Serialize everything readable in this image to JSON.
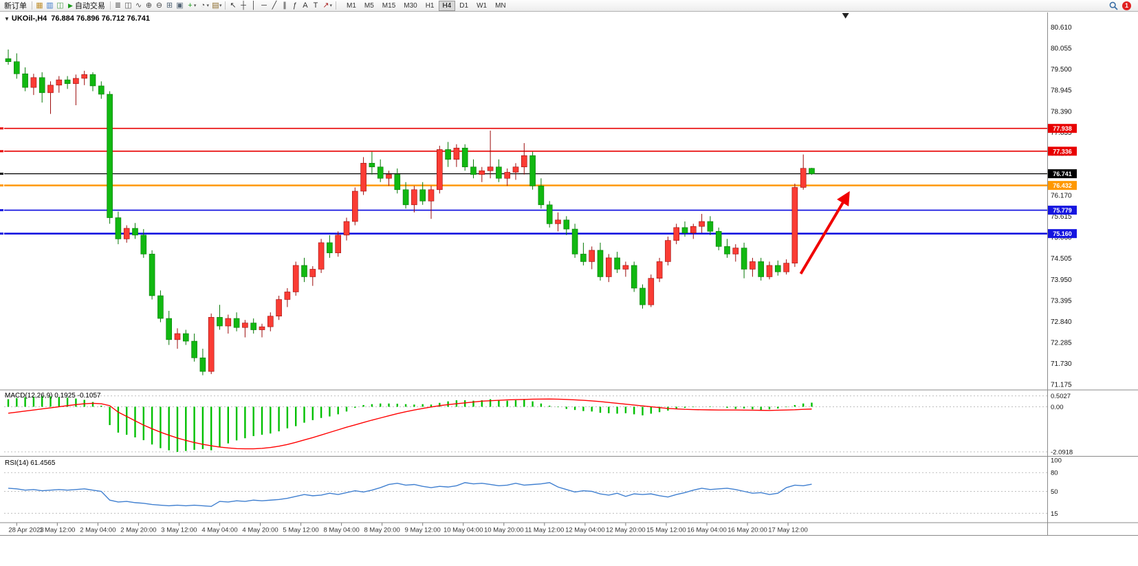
{
  "app": {
    "notification_count": "1"
  },
  "toolbar": {
    "new_order": "新订单",
    "auto_trading": "自动交易",
    "window_icons": [
      {
        "name": "market-watch-icon",
        "glyph": "▦",
        "color": "#c09030"
      },
      {
        "name": "data-window-icon",
        "glyph": "▥",
        "color": "#3c78c8"
      },
      {
        "name": "navigator-icon",
        "glyph": "◫",
        "color": "#4f9f4f"
      }
    ],
    "chart_type_icons": [
      {
        "name": "bar-chart-icon",
        "glyph": "≣",
        "color": "#555555"
      },
      {
        "name": "candlestick-chart-icon",
        "glyph": "◫",
        "color": "#555555"
      },
      {
        "name": "line-chart-icon",
        "glyph": "∿",
        "color": "#555555"
      }
    ],
    "zoom_icons": [
      {
        "name": "zoom-in-icon",
        "glyph": "⊕",
        "color": "#444444"
      },
      {
        "name": "zoom-out-icon",
        "glyph": "⊖",
        "color": "#444444"
      }
    ],
    "window_arrange_icons": [
      {
        "name": "tile-windows-icon",
        "glyph": "⊞",
        "color": "#556677"
      },
      {
        "name": "cascade-windows-icon",
        "glyph": "▣",
        "color": "#556677"
      }
    ],
    "insert_icons": [
      {
        "name": "indicators-icon",
        "glyph": "+",
        "color": "#1a9a1a",
        "dropdown": true
      },
      {
        "name": "periods-icon",
        "glyph": "◔",
        "color": "#555555",
        "dropdown": true
      },
      {
        "name": "templates-icon",
        "glyph": "▤",
        "color": "#8a6a2a",
        "dropdown": true
      }
    ],
    "draw_icons": [
      {
        "name": "cursor-icon",
        "glyph": "↖",
        "color": "#333333"
      },
      {
        "name": "crosshair-icon",
        "glyph": "┼",
        "color": "#333333"
      },
      {
        "name": "vertical-line-icon",
        "glyph": "│",
        "color": "#333333"
      },
      {
        "name": "horizontal-line-icon",
        "glyph": "─",
        "color": "#333333"
      },
      {
        "name": "trendline-icon",
        "glyph": "╱",
        "color": "#333333"
      },
      {
        "name": "channel-icon",
        "glyph": "∥",
        "color": "#333333"
      },
      {
        "name": "fibonacci-icon",
        "glyph": "ƒ",
        "color": "#333333"
      },
      {
        "name": "text-icon",
        "glyph": "A",
        "color": "#333333"
      },
      {
        "name": "label-icon",
        "glyph": "T",
        "color": "#333333"
      },
      {
        "name": "arrows-icon",
        "glyph": "↗",
        "color": "#aa2222",
        "dropdown": true
      }
    ],
    "timeframes": [
      "M1",
      "M5",
      "M15",
      "M30",
      "H1",
      "H4",
      "D1",
      "W1",
      "MN"
    ],
    "active_timeframe": "H4"
  },
  "chart": {
    "title": "UKOil-,H4",
    "ohlc": "76.884 76.896 76.712 76.741",
    "macd_label": "MACD(12,26,9) 0.1925 -0.1057",
    "rsi_label": "RSI(14) 61.4565"
  },
  "chart_data": {
    "type": "candlestick",
    "symbol": "UKOil-",
    "period": "H4",
    "current": {
      "open": 76.884,
      "high": 76.896,
      "low": 76.712,
      "close": 76.741
    },
    "colors": {
      "bull": "#fa3c34",
      "bull_border": "#9c0b0b",
      "bear": "#11b811",
      "bear_border": "#067806"
    },
    "price_axis": {
      "min": 71.05,
      "max": 80.82,
      "labels": [
        "80.610",
        "80.055",
        "79.500",
        "78.945",
        "78.390",
        "77.835",
        "77.280",
        "76.725",
        "76.170",
        "75.615",
        "75.060",
        "74.505",
        "73.950",
        "73.395",
        "72.840",
        "72.285",
        "71.730",
        "71.175"
      ]
    },
    "time_labels": [
      "28 Apr 2023",
      "1 May 12:00",
      "2 May 04:00",
      "2 May 20:00",
      "3 May 12:00",
      "4 May 04:00",
      "4 May 20:00",
      "5 May 12:00",
      "8 May 04:00",
      "8 May 20:00",
      "9 May 12:00",
      "10 May 04:00",
      "10 May 20:00",
      "11 May 12:00",
      "12 May 04:00",
      "12 May 20:00",
      "15 May 12:00",
      "16 May 04:00",
      "16 May 20:00",
      "17 May 12:00"
    ],
    "candles": [
      [
        79.78,
        80.02,
        79.62,
        79.7
      ],
      [
        79.7,
        79.92,
        79.25,
        79.38
      ],
      [
        79.38,
        79.55,
        78.92,
        79.02
      ],
      [
        79.02,
        79.38,
        78.82,
        79.28
      ],
      [
        79.28,
        79.42,
        78.62,
        78.88
      ],
      [
        78.88,
        79.18,
        78.32,
        79.08
      ],
      [
        79.08,
        79.32,
        78.88,
        79.22
      ],
      [
        79.22,
        79.32,
        78.98,
        79.12
      ],
      [
        79.12,
        79.36,
        78.55,
        79.26
      ],
      [
        79.26,
        79.46,
        79.08,
        79.36
      ],
      [
        79.36,
        79.42,
        78.92,
        79.06
      ],
      [
        79.06,
        79.18,
        78.72,
        78.84
      ],
      [
        78.84,
        78.92,
        75.42,
        75.58
      ],
      [
        75.58,
        75.74,
        74.88,
        75.02
      ],
      [
        75.02,
        75.38,
        74.92,
        75.3
      ],
      [
        75.3,
        75.44,
        75.02,
        75.12
      ],
      [
        75.12,
        75.28,
        74.52,
        74.62
      ],
      [
        74.62,
        74.72,
        73.42,
        73.52
      ],
      [
        73.52,
        73.66,
        72.82,
        72.92
      ],
      [
        72.92,
        73.12,
        72.22,
        72.36
      ],
      [
        72.36,
        72.66,
        72.12,
        72.52
      ],
      [
        72.52,
        72.62,
        72.22,
        72.32
      ],
      [
        72.32,
        72.52,
        71.78,
        71.88
      ],
      [
        71.88,
        72.12,
        71.42,
        71.52
      ],
      [
        71.52,
        73.05,
        71.45,
        72.95
      ],
      [
        72.95,
        73.28,
        72.62,
        72.72
      ],
      [
        72.72,
        73.02,
        72.52,
        72.92
      ],
      [
        72.92,
        73.08,
        72.58,
        72.68
      ],
      [
        72.68,
        72.88,
        72.42,
        72.8
      ],
      [
        72.8,
        72.92,
        72.52,
        72.62
      ],
      [
        72.62,
        72.78,
        72.42,
        72.7
      ],
      [
        72.7,
        73.08,
        72.58,
        72.98
      ],
      [
        72.98,
        73.52,
        72.88,
        73.42
      ],
      [
        73.42,
        73.72,
        73.22,
        73.62
      ],
      [
        73.62,
        74.42,
        73.52,
        74.32
      ],
      [
        74.32,
        74.52,
        73.88,
        74.02
      ],
      [
        74.02,
        74.3,
        73.78,
        74.22
      ],
      [
        74.22,
        75.02,
        74.12,
        74.92
      ],
      [
        74.92,
        75.12,
        74.52,
        74.65
      ],
      [
        74.65,
        75.22,
        74.55,
        75.12
      ],
      [
        75.12,
        75.58,
        74.98,
        75.48
      ],
      [
        75.48,
        76.38,
        75.38,
        76.28
      ],
      [
        76.28,
        77.18,
        76.18,
        77.02
      ],
      [
        77.02,
        77.32,
        76.72,
        76.92
      ],
      [
        76.92,
        77.12,
        76.52,
        76.62
      ],
      [
        76.62,
        76.82,
        76.42,
        76.72
      ],
      [
        76.72,
        76.88,
        76.22,
        76.32
      ],
      [
        76.32,
        76.52,
        75.82,
        75.92
      ],
      [
        75.92,
        76.42,
        75.72,
        76.32
      ],
      [
        76.32,
        76.52,
        75.92,
        76.02
      ],
      [
        76.02,
        76.42,
        75.55,
        76.32
      ],
      [
        76.32,
        77.48,
        76.22,
        77.38
      ],
      [
        77.38,
        77.58,
        76.92,
        77.12
      ],
      [
        77.12,
        77.52,
        76.92,
        77.42
      ],
      [
        77.42,
        77.52,
        76.82,
        76.92
      ],
      [
        76.92,
        77.12,
        76.62,
        76.72
      ],
      [
        76.72,
        76.92,
        76.52,
        76.82
      ],
      [
        76.82,
        77.88,
        76.62,
        76.92
      ],
      [
        76.92,
        77.12,
        76.52,
        76.62
      ],
      [
        76.62,
        76.88,
        76.42,
        76.78
      ],
      [
        76.78,
        77.02,
        76.58,
        76.92
      ],
      [
        76.92,
        77.55,
        76.72,
        77.22
      ],
      [
        77.22,
        77.32,
        76.32,
        76.42
      ],
      [
        76.42,
        76.62,
        75.82,
        75.92
      ],
      [
        75.92,
        76.02,
        75.32,
        75.42
      ],
      [
        75.42,
        75.72,
        75.22,
        75.52
      ],
      [
        75.52,
        75.62,
        75.12,
        75.28
      ],
      [
        75.28,
        75.42,
        74.52,
        74.62
      ],
      [
        74.62,
        74.92,
        74.32,
        74.42
      ],
      [
        74.42,
        74.82,
        74.22,
        74.72
      ],
      [
        74.72,
        74.92,
        73.92,
        74.02
      ],
      [
        74.02,
        74.62,
        73.88,
        74.52
      ],
      [
        74.52,
        74.68,
        74.12,
        74.22
      ],
      [
        74.22,
        74.42,
        74.02,
        74.32
      ],
      [
        74.32,
        74.42,
        73.62,
        73.72
      ],
      [
        73.72,
        73.82,
        73.18,
        73.28
      ],
      [
        73.28,
        74.08,
        73.22,
        73.98
      ],
      [
        73.98,
        74.52,
        73.88,
        74.42
      ],
      [
        74.42,
        75.08,
        74.32,
        74.98
      ],
      [
        74.98,
        75.42,
        74.88,
        75.32
      ],
      [
        75.32,
        75.48,
        75.08,
        75.18
      ],
      [
        75.18,
        75.42,
        75.02,
        75.35
      ],
      [
        75.35,
        75.68,
        75.18,
        75.48
      ],
      [
        75.48,
        75.62,
        75.12,
        75.22
      ],
      [
        75.22,
        75.32,
        74.72,
        74.82
      ],
      [
        74.82,
        75.02,
        74.52,
        74.62
      ],
      [
        74.62,
        74.88,
        74.42,
        74.78
      ],
      [
        74.78,
        74.92,
        73.98,
        74.22
      ],
      [
        74.22,
        74.52,
        74.02,
        74.42
      ],
      [
        74.42,
        74.52,
        73.92,
        74.02
      ],
      [
        74.02,
        74.42,
        73.95,
        74.32
      ],
      [
        74.32,
        74.45,
        74.05,
        74.15
      ],
      [
        74.15,
        74.48,
        74.08,
        74.38
      ],
      [
        74.38,
        76.48,
        74.28,
        76.38
      ],
      [
        76.38,
        77.25,
        76.32,
        76.884
      ],
      [
        76.884,
        76.896,
        76.712,
        76.741
      ]
    ],
    "hlines": [
      {
        "value": 77.938,
        "label": "77.938",
        "color": "#e80000",
        "width": 1.6
      },
      {
        "value": 77.336,
        "label": "77.336",
        "color": "#e80000",
        "width": 1.6
      },
      {
        "value": 76.741,
        "label": "76.741",
        "color": "#000000",
        "width": 1.2,
        "current": true
      },
      {
        "value": 76.432,
        "label": "76.432",
        "color": "#ff9800",
        "width": 2.6
      },
      {
        "value": 75.779,
        "label": "75.779",
        "color": "#1515e0",
        "width": 1.8
      },
      {
        "value": 75.16,
        "label": "75.160",
        "color": "#1515e0",
        "width": 2.6
      }
    ],
    "indicators": [
      {
        "name": "MACD",
        "label": "MACD(12,26,9) 0.1925 -0.1057",
        "main_value": 0.1925,
        "signal_value": -0.1057,
        "histogram_color": "#00c000",
        "signal_color": "#ff0000",
        "range": [
          -2.25,
          0.62
        ],
        "scale": [
          {
            "v": 0.5027,
            "label": "0.5027"
          },
          {
            "v": 0,
            "label": "0.00"
          },
          {
            "v": -2.0918,
            "label": "-2.0918"
          }
        ],
        "histogram": [
          0.35,
          0.4,
          0.44,
          0.47,
          0.5,
          0.48,
          0.45,
          0.42,
          0.38,
          0.32,
          0.22,
          0.05,
          -0.85,
          -1.2,
          -1.3,
          -1.42,
          -1.55,
          -1.75,
          -1.92,
          -2.02,
          -2.09,
          -2.05,
          -2.0,
          -1.96,
          -2.02,
          -1.85,
          -1.7,
          -1.56,
          -1.46,
          -1.36,
          -1.3,
          -1.24,
          -1.14,
          -1.0,
          -0.9,
          -0.74,
          -0.62,
          -0.52,
          -0.45,
          -0.35,
          -0.22,
          -0.05,
          0.08,
          0.12,
          0.15,
          0.15,
          0.14,
          0.12,
          0.1,
          0.12,
          0.1,
          0.18,
          0.25,
          0.3,
          0.3,
          0.28,
          0.3,
          0.35,
          0.3,
          0.28,
          0.3,
          0.32,
          0.25,
          0.15,
          0.05,
          -0.02,
          -0.1,
          -0.15,
          -0.2,
          -0.22,
          -0.28,
          -0.3,
          -0.32,
          -0.3,
          -0.35,
          -0.4,
          -0.32,
          -0.25,
          -0.18,
          -0.1,
          -0.05,
          -0.02,
          0.0,
          0.02,
          0.0,
          -0.05,
          -0.1,
          -0.08,
          -0.12,
          -0.15,
          -0.12,
          -0.08,
          -0.02,
          0.08,
          0.15,
          0.19
        ],
        "signal": [
          -0.3,
          -0.25,
          -0.2,
          -0.15,
          -0.1,
          -0.05,
          0.0,
          0.05,
          0.1,
          0.14,
          0.16,
          0.14,
          0.05,
          -0.25,
          -0.45,
          -0.65,
          -0.85,
          -1.02,
          -1.18,
          -1.32,
          -1.45,
          -1.56,
          -1.66,
          -1.74,
          -1.81,
          -1.87,
          -1.91,
          -1.94,
          -1.95,
          -1.95,
          -1.93,
          -1.89,
          -1.83,
          -1.75,
          -1.65,
          -1.54,
          -1.43,
          -1.31,
          -1.19,
          -1.07,
          -0.95,
          -0.84,
          -0.73,
          -0.62,
          -0.52,
          -0.42,
          -0.32,
          -0.23,
          -0.15,
          -0.08,
          -0.01,
          0.05,
          0.1,
          0.14,
          0.18,
          0.22,
          0.26,
          0.28,
          0.3,
          0.32,
          0.33,
          0.34,
          0.35,
          0.355,
          0.36,
          0.35,
          0.34,
          0.32,
          0.3,
          0.27,
          0.24,
          0.2,
          0.16,
          0.12,
          0.08,
          0.04,
          0.0,
          -0.04,
          -0.08,
          -0.1,
          -0.12,
          -0.13,
          -0.14,
          -0.145,
          -0.15,
          -0.15,
          -0.15,
          -0.155,
          -0.16,
          -0.165,
          -0.17,
          -0.16,
          -0.15,
          -0.14,
          -0.12,
          -0.1057
        ]
      },
      {
        "name": "RSI",
        "label": "RSI(14) 61.4565",
        "value": 61.4565,
        "line_color": "#3f7fd0",
        "range": [
          0,
          100
        ],
        "levels": [
          {
            "v": 100,
            "label": "100",
            "line": false
          },
          {
            "v": 80,
            "label": "80",
            "line": true
          },
          {
            "v": 50,
            "label": "50",
            "line": true
          },
          {
            "v": 15,
            "label": "15",
            "line": true
          }
        ],
        "values": [
          55,
          54,
          52,
          53,
          51,
          52,
          53,
          52,
          53,
          54,
          52,
          50,
          36,
          33,
          34,
          32,
          31,
          29,
          28,
          27,
          28,
          27,
          28,
          27,
          26,
          34,
          33,
          35,
          34,
          36,
          35,
          36,
          37,
          39,
          42,
          45,
          43,
          44,
          47,
          45,
          48,
          51,
          49,
          52,
          56,
          61,
          63,
          60,
          61,
          58,
          56,
          58,
          57,
          59,
          64,
          62,
          63,
          61,
          59,
          60,
          63,
          60,
          61,
          62,
          64,
          57,
          53,
          49,
          51,
          50,
          46,
          44,
          47,
          42,
          46,
          45,
          46,
          43,
          41,
          45,
          48,
          52,
          55,
          53,
          54,
          55,
          53,
          50,
          47,
          48,
          45,
          47,
          56,
          60,
          59,
          61.5
        ]
      }
    ],
    "arrow": {
      "from_index": 93.7,
      "from_price": 74.1,
      "to_index": 99.2,
      "to_price": 76.17,
      "color": "#f00000",
      "width": 4
    },
    "shift_marker_index": 99
  }
}
